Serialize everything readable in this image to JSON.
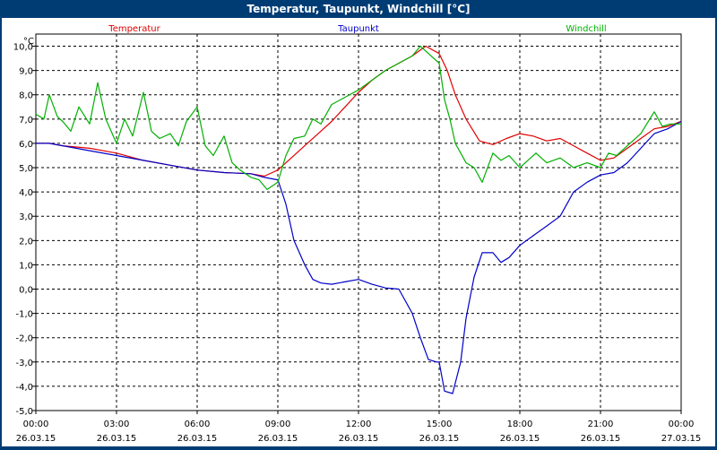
{
  "window": {
    "title": "Temperatur, Taupunkt, Windchill [°C]"
  },
  "colors": {
    "frame": "#003c74",
    "temperatur": "#e00000",
    "taupunkt": "#0000c8",
    "windchill": "#00b000"
  },
  "chart_data": {
    "type": "line",
    "title": "Temperatur, Taupunkt, Windchill [°C]",
    "ylabel": "°C",
    "ylim": [
      -5,
      10.5
    ],
    "yticks": [
      -5,
      -4,
      -3,
      -2,
      -1,
      0,
      1,
      2,
      3,
      4,
      5,
      6,
      7,
      8,
      9,
      10
    ],
    "ytick_labels": [
      "-5,0",
      "-4,0",
      "-3,0",
      "-2,0",
      "-1,0",
      "0,0",
      "1,0",
      "2,0",
      "3,0",
      "4,0",
      "5,0",
      "6,0",
      "7,0",
      "8,0",
      "9,0",
      "10,0"
    ],
    "xlim": [
      0,
      24
    ],
    "xticks": [
      {
        "x": 0,
        "time": "00:00",
        "date": "26.03.15"
      },
      {
        "x": 3,
        "time": "03:00",
        "date": "26.03.15"
      },
      {
        "x": 6,
        "time": "06:00",
        "date": "26.03.15"
      },
      {
        "x": 9,
        "time": "09:00",
        "date": "26.03.15"
      },
      {
        "x": 12,
        "time": "12:00",
        "date": "26.03.15"
      },
      {
        "x": 15,
        "time": "15:00",
        "date": "26.03.15"
      },
      {
        "x": 18,
        "time": "18:00",
        "date": "26.03.15"
      },
      {
        "x": 21,
        "time": "21:00",
        "date": "26.03.15"
      },
      {
        "x": 24,
        "time": "00:00",
        "date": "27.03.15"
      }
    ],
    "grid": true,
    "legend": "top, inline above plot",
    "series": [
      {
        "name": "Temperatur",
        "color": "#e00000",
        "points": [
          [
            0,
            6.0
          ],
          [
            0.5,
            6.0
          ],
          [
            1,
            5.9
          ],
          [
            2,
            5.8
          ],
          [
            3,
            5.6
          ],
          [
            4,
            5.3
          ],
          [
            5,
            5.1
          ],
          [
            6,
            4.9
          ],
          [
            7,
            4.8
          ],
          [
            8,
            4.75
          ],
          [
            8.5,
            4.65
          ],
          [
            9,
            4.9
          ],
          [
            9.5,
            5.4
          ],
          [
            10,
            5.9
          ],
          [
            10.5,
            6.4
          ],
          [
            11,
            6.9
          ],
          [
            11.5,
            7.5
          ],
          [
            12,
            8.1
          ],
          [
            12.5,
            8.6
          ],
          [
            13,
            9.0
          ],
          [
            13.5,
            9.3
          ],
          [
            14,
            9.6
          ],
          [
            14.5,
            10.0
          ],
          [
            15,
            9.7
          ],
          [
            15.3,
            9.0
          ],
          [
            15.6,
            8.0
          ],
          [
            16,
            7.0
          ],
          [
            16.5,
            6.1
          ],
          [
            17,
            5.95
          ],
          [
            17.5,
            6.2
          ],
          [
            18,
            6.4
          ],
          [
            18.5,
            6.3
          ],
          [
            19,
            6.1
          ],
          [
            19.5,
            6.2
          ],
          [
            20,
            5.9
          ],
          [
            20.5,
            5.6
          ],
          [
            21,
            5.3
          ],
          [
            21.5,
            5.4
          ],
          [
            22,
            5.8
          ],
          [
            22.5,
            6.2
          ],
          [
            23,
            6.6
          ],
          [
            23.5,
            6.7
          ],
          [
            24,
            6.9
          ]
        ]
      },
      {
        "name": "Taupunkt",
        "color": "#0000c8",
        "points": [
          [
            0,
            6.0
          ],
          [
            0.5,
            6.0
          ],
          [
            1,
            5.9
          ],
          [
            2,
            5.7
          ],
          [
            3,
            5.5
          ],
          [
            4,
            5.3
          ],
          [
            5,
            5.1
          ],
          [
            6,
            4.9
          ],
          [
            7,
            4.8
          ],
          [
            8,
            4.75
          ],
          [
            8.5,
            4.6
          ],
          [
            9,
            4.5
          ],
          [
            9.3,
            3.5
          ],
          [
            9.6,
            2.0
          ],
          [
            10,
            1.0
          ],
          [
            10.3,
            0.4
          ],
          [
            10.6,
            0.25
          ],
          [
            11,
            0.2
          ],
          [
            11.5,
            0.3
          ],
          [
            12,
            0.4
          ],
          [
            12.5,
            0.2
          ],
          [
            13,
            0.05
          ],
          [
            13.5,
            0.0
          ],
          [
            14,
            -1.0
          ],
          [
            14.3,
            -2.0
          ],
          [
            14.6,
            -2.9
          ],
          [
            14.9,
            -3.0
          ],
          [
            15,
            -3.0
          ],
          [
            15.2,
            -4.2
          ],
          [
            15.5,
            -4.3
          ],
          [
            15.8,
            -3.0
          ],
          [
            16,
            -1.2
          ],
          [
            16.3,
            0.5
          ],
          [
            16.6,
            1.5
          ],
          [
            17,
            1.5
          ],
          [
            17.3,
            1.1
          ],
          [
            17.6,
            1.3
          ],
          [
            18,
            1.8
          ],
          [
            18.5,
            2.2
          ],
          [
            19,
            2.6
          ],
          [
            19.5,
            3.0
          ],
          [
            20,
            4.0
          ],
          [
            20.5,
            4.4
          ],
          [
            21,
            4.7
          ],
          [
            21.5,
            4.8
          ],
          [
            22,
            5.2
          ],
          [
            22.5,
            5.8
          ],
          [
            23,
            6.4
          ],
          [
            23.5,
            6.6
          ],
          [
            24,
            6.9
          ]
        ]
      },
      {
        "name": "Windchill",
        "color": "#00b000",
        "points": [
          [
            0,
            7.2
          ],
          [
            0.3,
            7.0
          ],
          [
            0.5,
            8.0
          ],
          [
            0.8,
            7.1
          ],
          [
            1,
            6.9
          ],
          [
            1.3,
            6.5
          ],
          [
            1.6,
            7.5
          ],
          [
            2,
            6.8
          ],
          [
            2.3,
            8.5
          ],
          [
            2.6,
            7.0
          ],
          [
            3,
            6.0
          ],
          [
            3.3,
            7.0
          ],
          [
            3.6,
            6.3
          ],
          [
            4,
            8.1
          ],
          [
            4.3,
            6.5
          ],
          [
            4.6,
            6.2
          ],
          [
            5,
            6.4
          ],
          [
            5.3,
            5.9
          ],
          [
            5.6,
            6.9
          ],
          [
            6,
            7.5
          ],
          [
            6.3,
            5.9
          ],
          [
            6.6,
            5.5
          ],
          [
            7,
            6.3
          ],
          [
            7.3,
            5.2
          ],
          [
            7.6,
            4.9
          ],
          [
            8,
            4.6
          ],
          [
            8.3,
            4.5
          ],
          [
            8.6,
            4.1
          ],
          [
            9,
            4.4
          ],
          [
            9.3,
            5.5
          ],
          [
            9.6,
            6.2
          ],
          [
            10,
            6.3
          ],
          [
            10.3,
            7.0
          ],
          [
            10.6,
            6.8
          ],
          [
            11,
            7.6
          ],
          [
            11.5,
            7.9
          ],
          [
            12,
            8.2
          ],
          [
            12.5,
            8.6
          ],
          [
            13,
            9.0
          ],
          [
            13.5,
            9.3
          ],
          [
            14,
            9.6
          ],
          [
            14.3,
            10.0
          ],
          [
            14.6,
            9.7
          ],
          [
            15,
            9.3
          ],
          [
            15.2,
            7.8
          ],
          [
            15.4,
            7.0
          ],
          [
            15.6,
            6.0
          ],
          [
            16,
            5.2
          ],
          [
            16.3,
            5.0
          ],
          [
            16.6,
            4.4
          ],
          [
            17,
            5.6
          ],
          [
            17.3,
            5.3
          ],
          [
            17.6,
            5.5
          ],
          [
            18,
            5.0
          ],
          [
            18.3,
            5.3
          ],
          [
            18.6,
            5.6
          ],
          [
            19,
            5.2
          ],
          [
            19.5,
            5.4
          ],
          [
            20,
            5.0
          ],
          [
            20.5,
            5.2
          ],
          [
            21,
            5.0
          ],
          [
            21.3,
            5.6
          ],
          [
            21.6,
            5.5
          ],
          [
            22,
            5.9
          ],
          [
            22.5,
            6.4
          ],
          [
            23,
            7.3
          ],
          [
            23.3,
            6.7
          ],
          [
            23.6,
            6.8
          ],
          [
            24,
            6.8
          ]
        ]
      }
    ]
  }
}
